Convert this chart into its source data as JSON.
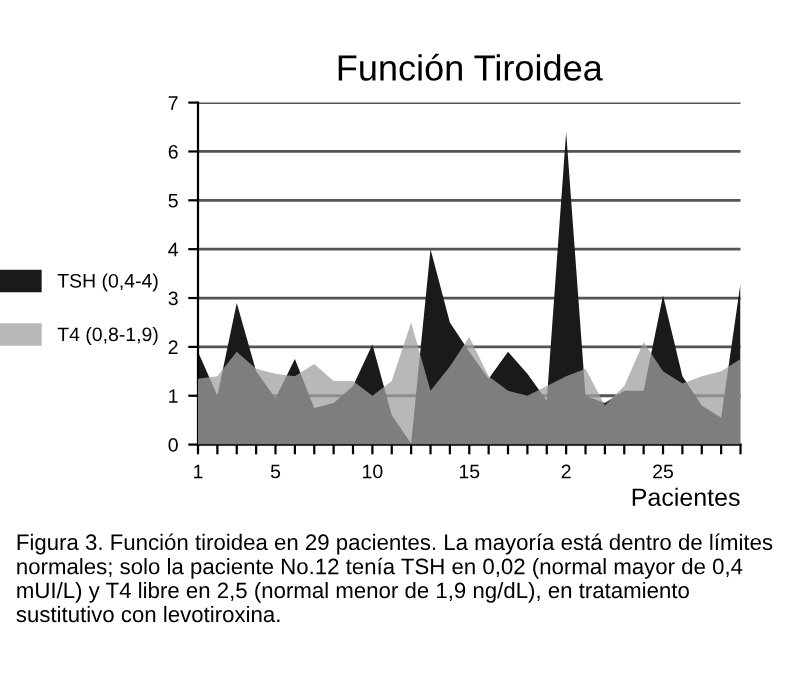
{
  "chart_data": {
    "type": "area",
    "title": "Función Tiroidea",
    "xlabel": "Pacientes",
    "categories": [
      "1",
      null,
      null,
      null,
      "5",
      null,
      null,
      null,
      null,
      "10",
      null,
      null,
      null,
      null,
      "15",
      null,
      null,
      null,
      null,
      "2",
      null,
      null,
      null,
      null,
      "25",
      null,
      null,
      null,
      null
    ],
    "series": [
      {
        "name": "TSH (0,4-4)",
        "color": "#1a1a1a",
        "values": [
          1.9,
          1.0,
          2.9,
          1.5,
          0.95,
          1.75,
          0.75,
          0.85,
          1.2,
          2.05,
          0.6,
          0.02,
          4.0,
          2.5,
          1.9,
          1.35,
          1.9,
          1.45,
          0.9,
          6.4,
          1.0,
          0.85,
          1.1,
          1.1,
          3.05,
          1.4,
          0.8,
          0.55,
          3.3
        ]
      },
      {
        "name": "T4 (0,8-1,9)",
        "color": "#a0a0a0",
        "values": [
          1.35,
          1.4,
          1.9,
          1.55,
          1.45,
          1.4,
          1.65,
          1.3,
          1.3,
          1.0,
          1.3,
          2.5,
          1.1,
          1.6,
          2.2,
          1.4,
          1.1,
          1.0,
          1.2,
          1.4,
          1.55,
          0.8,
          1.2,
          2.1,
          1.5,
          1.25,
          1.4,
          1.5,
          1.75
        ]
      }
    ],
    "ylim": [
      0,
      7
    ],
    "yticks": [
      0,
      1,
      2,
      3,
      4,
      5,
      6,
      7
    ],
    "grid": "y",
    "legend": "left",
    "annotations": [
      "Figura 3. Función tiroidea en 29 pacientes. La mayoría está dentro de límites normales; solo la paciente No.12 tenía TSH en 0,02 (normal mayor de 0,4 mUI/L) y T4 libre en 2,5 (normal menor de 1,9 ng/dL), en tratamiento sustitutivo con levotiroxina."
    ]
  }
}
